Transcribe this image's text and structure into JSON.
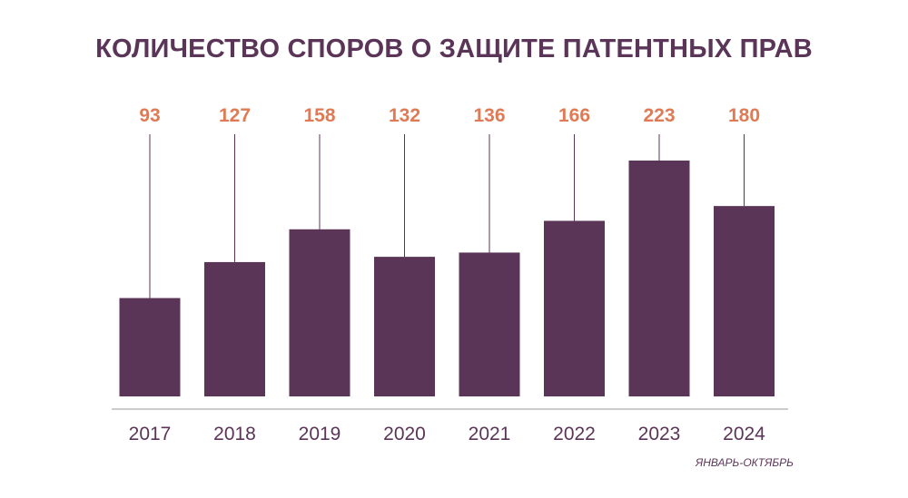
{
  "chart_data": {
    "type": "bar",
    "title": "КОЛИЧЕСТВО СПОРОВ О ЗАЩИТЕ ПАТЕНТНЫХ ПРАВ",
    "categories": [
      "2017",
      "2018",
      "2019",
      "2020",
      "2021",
      "2022",
      "2023",
      "2024"
    ],
    "values": [
      93,
      127,
      158,
      132,
      136,
      166,
      223,
      180
    ],
    "value_labels": [
      "93",
      "127",
      "158",
      "132",
      "136",
      "166",
      "223",
      "180"
    ],
    "note": "ЯНВАРЬ-ОКТЯБРЬ",
    "xlabel": "",
    "ylabel": "",
    "ylim": [
      0,
      223
    ],
    "grid": false,
    "colors": {
      "bar": "#5b3558",
      "value_label": "#e07a54",
      "axis_text": "#5b3558",
      "axis_line": "#999999"
    }
  }
}
